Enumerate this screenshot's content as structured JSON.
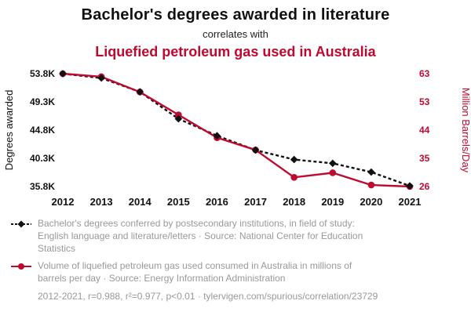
{
  "header": {
    "title": "Bachelor's degrees awarded in literature",
    "subtitle": "correlates with",
    "title2": "Liquefied petroleum gas used in Australia"
  },
  "colors": {
    "accent_red": "#bf0a30",
    "series_black": "#111111",
    "caption_gray": "#999999"
  },
  "chart_data": {
    "type": "line",
    "x": [
      "2012",
      "2013",
      "2014",
      "2015",
      "2016",
      "2017",
      "2018",
      "2019",
      "2020",
      "2021"
    ],
    "series": [
      {
        "id": "degrees",
        "name": "Bachelor's degrees awarded in literature",
        "axis": "left",
        "color": "#111111",
        "style": "dashed",
        "marker": "diamond",
        "values": [
          53800,
          53100,
          50900,
          46600,
          43900,
          41600,
          40100,
          39500,
          38100,
          35900
        ]
      },
      {
        "id": "lpg",
        "name": "Liquefied petroleum gas used in Australia",
        "axis": "right",
        "color": "#bf0a30",
        "style": "solid",
        "marker": "circle",
        "values": [
          63,
          62,
          57,
          49.5,
          42,
          38,
          29,
          30.5,
          26.5,
          26
        ]
      }
    ],
    "left_axis": {
      "label": "Degrees awarded",
      "ticks": [
        "53.8K",
        "49.3K",
        "44.8K",
        "40.3K",
        "35.8K"
      ],
      "range": [
        35800,
        53800
      ]
    },
    "right_axis": {
      "label": "Million Barrels/Day",
      "ticks": [
        "63",
        "53",
        "44",
        "35",
        "26"
      ],
      "range": [
        26,
        63
      ]
    },
    "grid": false,
    "legend_position": "bottom-captions"
  },
  "captions": [
    "Bachelor's degrees conferred by postsecondary institutions, in field of study: English language and literature/letters · Source: National Center for Education Statistics",
    "Volume of liquefied petroleum gas used consumed in Australia in millions of barrels per day · Source: Energy Information Administration"
  ],
  "footer": "2012-2021, r=0.988, r²=0.977, p<0.01 · tylervigen.com/spurious/correlation/23729"
}
